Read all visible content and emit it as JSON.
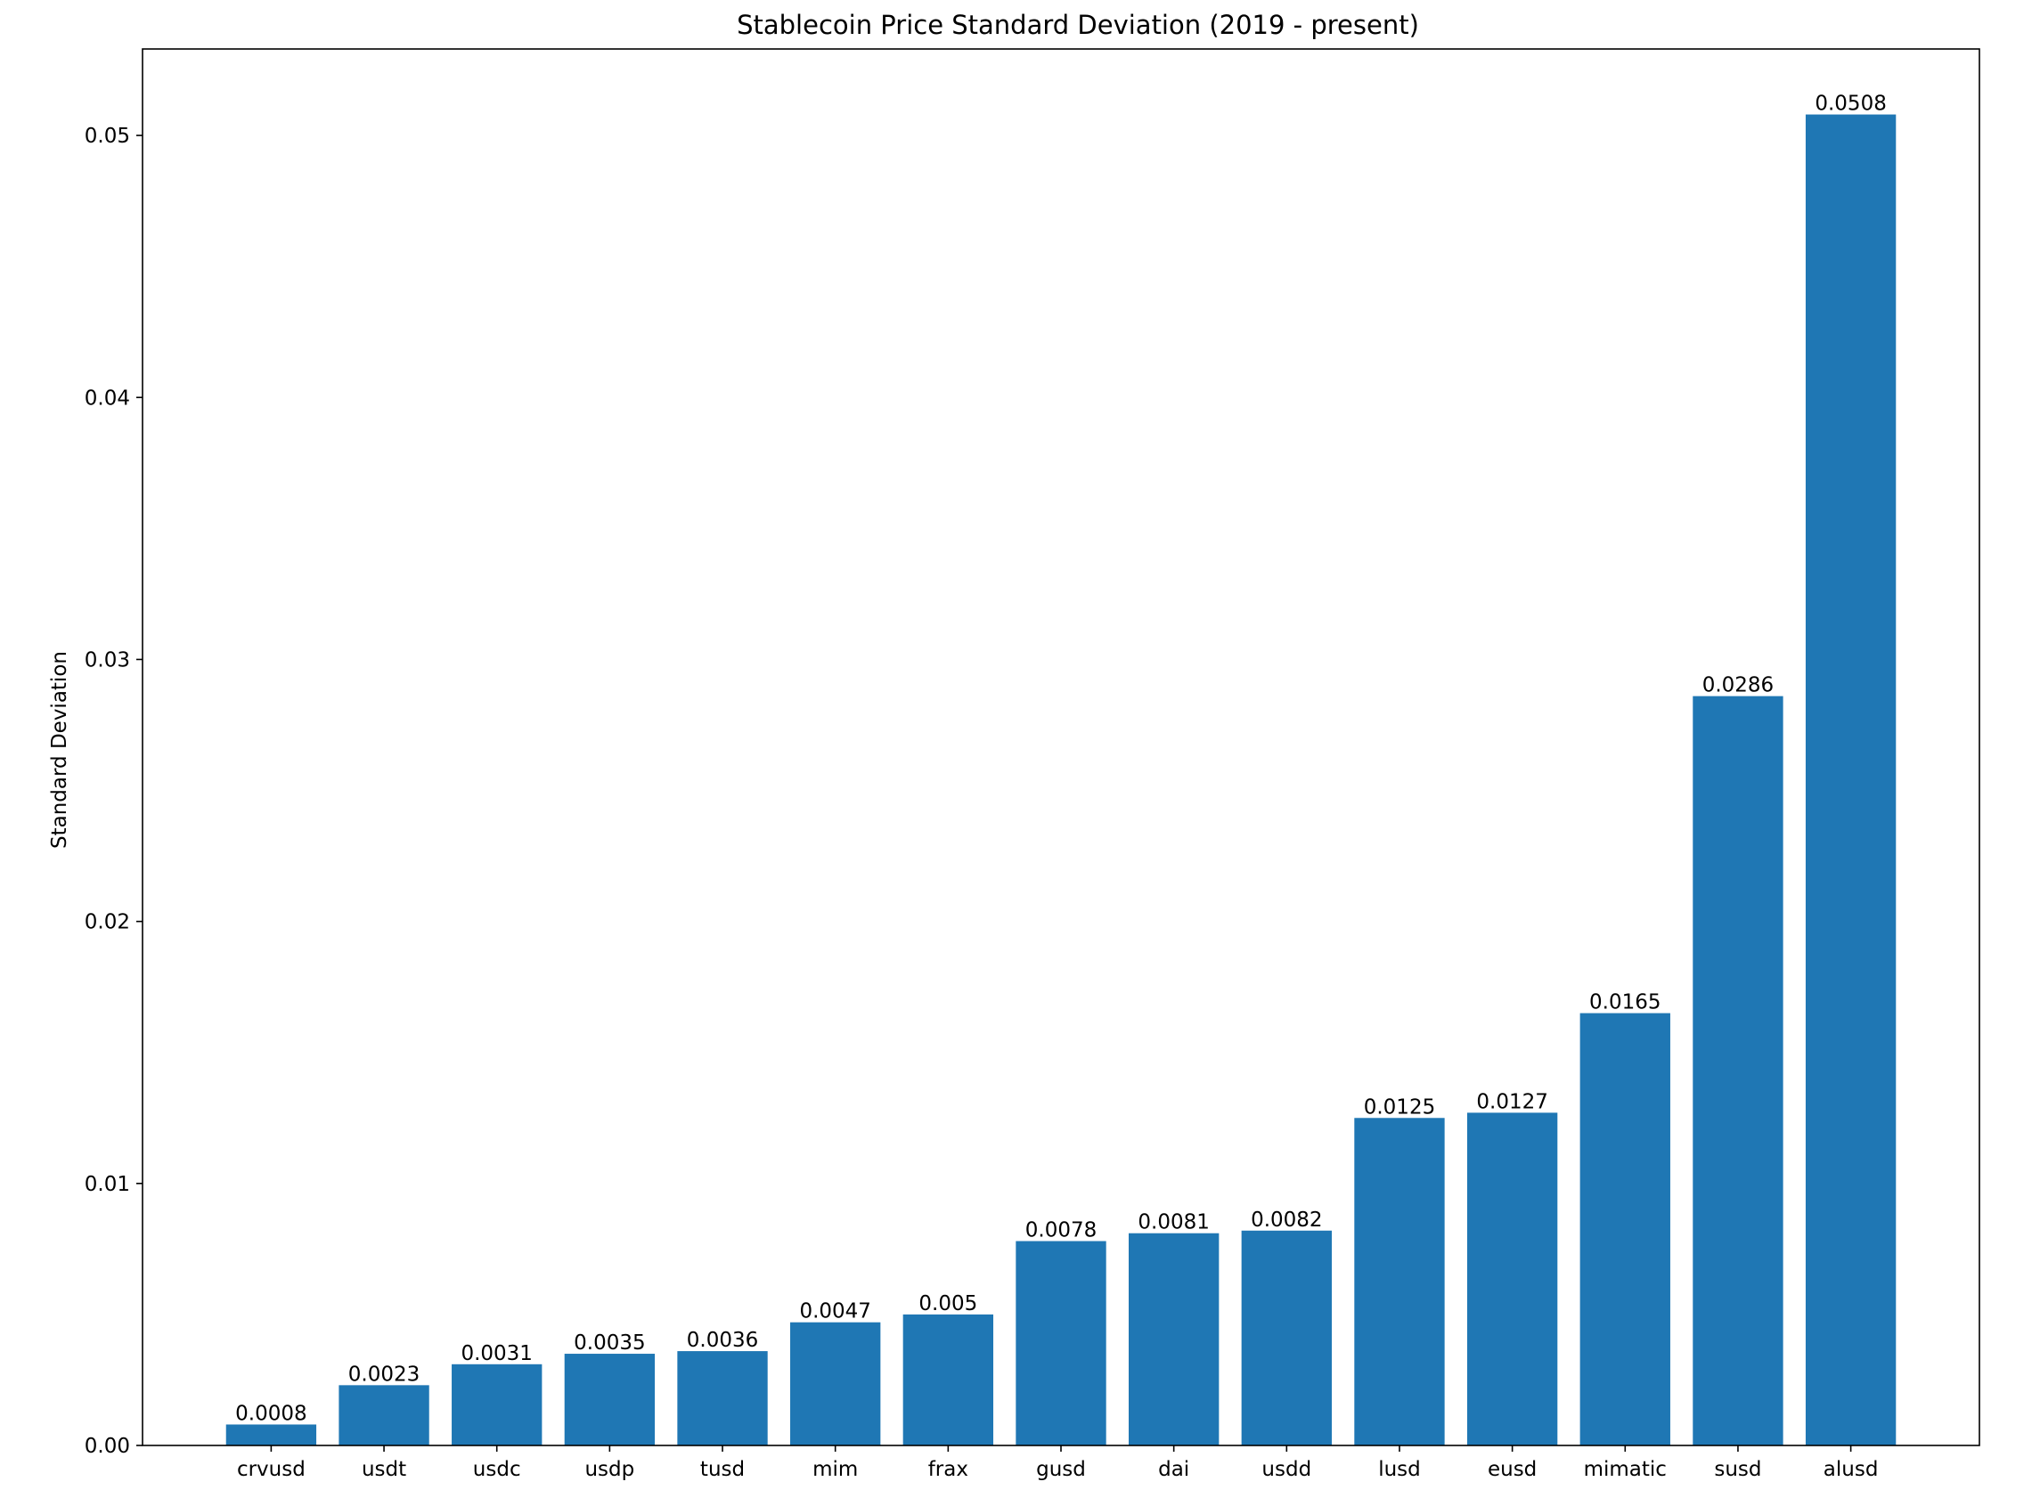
{
  "chart_data": {
    "type": "bar",
    "title": "Stablecoin Price Standard Deviation (2019 - present)",
    "xlabel": "",
    "ylabel": "Standard Deviation",
    "categories": [
      "crvusd",
      "usdt",
      "usdc",
      "usdp",
      "tusd",
      "mim",
      "frax",
      "gusd",
      "dai",
      "usdd",
      "lusd",
      "eusd",
      "mimatic",
      "susd",
      "alusd"
    ],
    "values": [
      0.0008,
      0.0023,
      0.0031,
      0.0035,
      0.0036,
      0.0047,
      0.005,
      0.0078,
      0.0081,
      0.0082,
      0.0125,
      0.0127,
      0.0165,
      0.0286,
      0.0508
    ],
    "data_labels": [
      "0.0008",
      "0.0023",
      "0.0031",
      "0.0035",
      "0.0036",
      "0.0047",
      "0.005",
      "0.0078",
      "0.0081",
      "0.0082",
      "0.0125",
      "0.0127",
      "0.0165",
      "0.0286",
      "0.0508"
    ],
    "y_ticks": [
      0,
      0.01,
      0.02,
      0.03,
      0.04,
      0.05
    ],
    "y_tick_labels": [
      "0.00",
      "0.01",
      "0.02",
      "0.03",
      "0.04",
      "0.05"
    ],
    "ylim": [
      0,
      0.0533
    ],
    "grid": false,
    "legend": "none",
    "colors": {
      "bar": "#1f77b4",
      "axis": "#000000",
      "background": "#ffffff"
    }
  }
}
